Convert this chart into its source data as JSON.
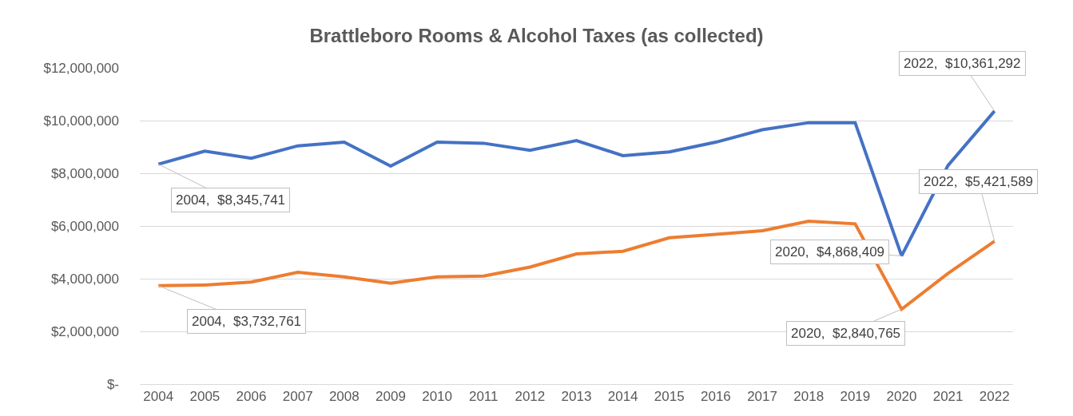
{
  "chart_data": {
    "type": "line",
    "title": "Brattleboro Rooms & Alcohol Taxes (as collected)",
    "categories": [
      "2004",
      "2005",
      "2006",
      "2007",
      "2008",
      "2009",
      "2010",
      "2011",
      "2012",
      "2013",
      "2014",
      "2015",
      "2016",
      "2017",
      "2018",
      "2019",
      "2020",
      "2021",
      "2022"
    ],
    "series": [
      {
        "color": "#4472c4",
        "values": [
          8345741,
          8840000,
          8570000,
          9040000,
          9180000,
          8270000,
          9180000,
          9140000,
          8870000,
          9240000,
          8670000,
          8810000,
          9180000,
          9650000,
          9920000,
          9920000,
          4868409,
          8300000,
          10361292
        ]
      },
      {
        "color": "#ed7d31",
        "values": [
          3732761,
          3760000,
          3870000,
          4240000,
          4070000,
          3830000,
          4070000,
          4100000,
          4440000,
          4940000,
          5040000,
          5550000,
          5680000,
          5820000,
          6180000,
          6080000,
          2840765,
          4200000,
          5421589
        ]
      }
    ],
    "ylim": [
      0,
      12000000
    ],
    "yticks": [
      {
        "value": 0,
        "label": "$-"
      },
      {
        "value": 2000000,
        "label": "$2,000,000"
      },
      {
        "value": 4000000,
        "label": "$4,000,000"
      },
      {
        "value": 6000000,
        "label": "$6,000,000"
      },
      {
        "value": 8000000,
        "label": "$8,000,000"
      },
      {
        "value": 10000000,
        "label": "$10,000,000"
      },
      {
        "value": 12000000,
        "label": "$12,000,000"
      }
    ],
    "grid": "y",
    "marker": "none",
    "line_style": "solid",
    "annotations": [
      {
        "text": "2004,  $8,345,741",
        "x": "2004",
        "y": 8345741
      },
      {
        "text": "2020,  $4,868,409",
        "x": "2020",
        "y": 4868409
      },
      {
        "text": "2022,  $10,361,292",
        "x": "2022",
        "y": 10361292
      },
      {
        "text": "2004,  $3,732,761",
        "x": "2004",
        "y": 3732761
      },
      {
        "text": "2020,  $2,840,765",
        "x": "2020",
        "y": 2840765
      },
      {
        "text": "2022,  $5,421,589",
        "x": "2022",
        "y": 5421589
      }
    ]
  }
}
